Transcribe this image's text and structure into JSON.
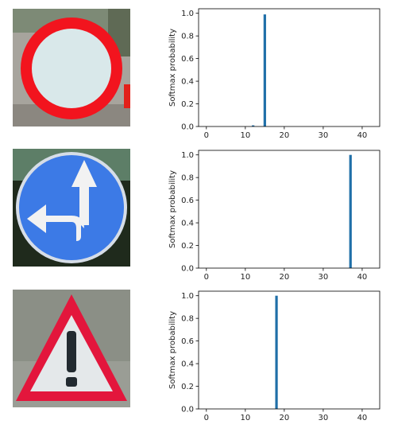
{
  "signs": [
    {
      "name": "no-vehicles-sign-icon"
    },
    {
      "name": "go-straight-or-left-sign-icon"
    },
    {
      "name": "general-caution-sign-icon"
    }
  ],
  "chart_data": [
    {
      "type": "bar",
      "ylabel": "Softmax probability",
      "xlim": [
        -2,
        44.5
      ],
      "ylim": [
        0,
        1.04
      ],
      "xticks": [
        0,
        10,
        20,
        30,
        40
      ],
      "yticks": [
        0.0,
        0.2,
        0.4,
        0.6,
        0.8,
        1.0
      ],
      "x": [
        12,
        15
      ],
      "values": [
        0.01,
        0.99
      ],
      "color": "#1f6fa8"
    },
    {
      "type": "bar",
      "ylabel": "Softmax probability",
      "xlim": [
        -2,
        44.5
      ],
      "ylim": [
        0,
        1.04
      ],
      "xticks": [
        0,
        10,
        20,
        30,
        40
      ],
      "yticks": [
        0.0,
        0.2,
        0.4,
        0.6,
        0.8,
        1.0
      ],
      "x": [
        37
      ],
      "values": [
        1.0
      ],
      "color": "#1f6fa8"
    },
    {
      "type": "bar",
      "ylabel": "Softmax probability",
      "xlim": [
        -2,
        44.5
      ],
      "ylim": [
        0,
        1.04
      ],
      "xticks": [
        0,
        10,
        20,
        30,
        40
      ],
      "yticks": [
        0.0,
        0.2,
        0.4,
        0.6,
        0.8,
        1.0
      ],
      "x": [
        18
      ],
      "values": [
        1.0
      ],
      "color": "#1f6fa8"
    }
  ]
}
